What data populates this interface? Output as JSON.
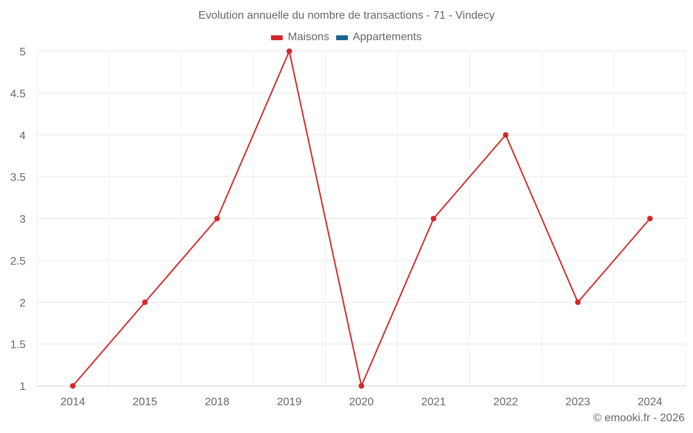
{
  "chart_data": {
    "type": "line",
    "title": "Evolution annuelle du nombre de transactions - 71 - Vindecy",
    "categories": [
      "2014",
      "2015",
      "2018",
      "2019",
      "2020",
      "2021",
      "2022",
      "2023",
      "2024"
    ],
    "series": [
      {
        "name": "Maisons",
        "color": "#d62728",
        "values": [
          1,
          2,
          3,
          5,
          1,
          3,
          4,
          2,
          3
        ]
      },
      {
        "name": "Appartements",
        "color": "#1a6496",
        "values": []
      }
    ],
    "xlabel": "",
    "ylabel": "",
    "ylim": [
      1,
      5
    ],
    "yticks": [
      "1",
      "1.5",
      "2",
      "2.5",
      "3",
      "3.5",
      "4",
      "4.5",
      "5"
    ],
    "grid": true,
    "legend_position": "top"
  },
  "legend": {
    "items": [
      {
        "label": "Maisons",
        "color": "#d62728"
      },
      {
        "label": "Appartements",
        "color": "#1a6496"
      }
    ]
  },
  "credit": "© emooki.fr - 2026"
}
